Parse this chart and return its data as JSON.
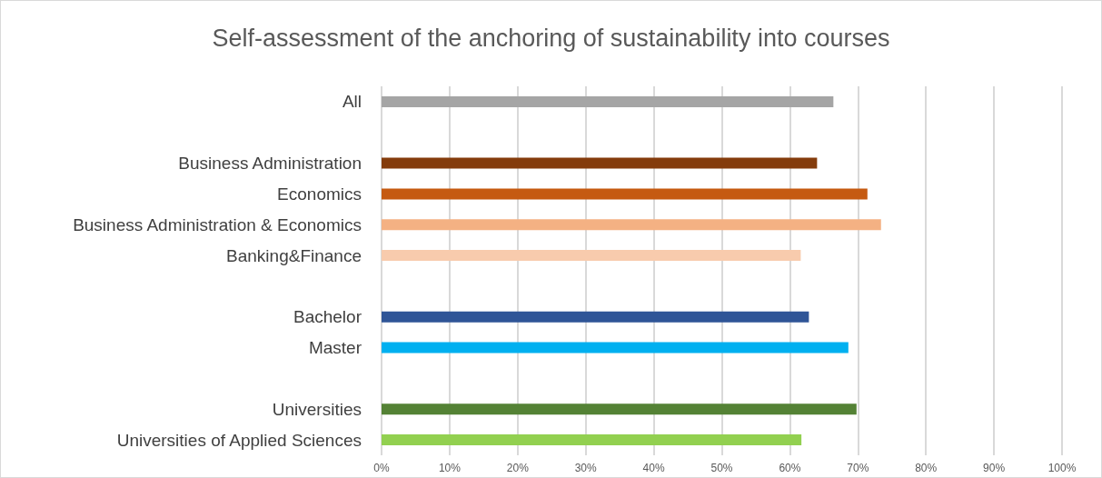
{
  "chart_data": {
    "type": "bar",
    "orientation": "horizontal",
    "title": "Self-assessment of the anchoring of sustainability into courses",
    "categories": [
      "All",
      null,
      "Business Administration",
      "Economics",
      "Business Administration & Economics",
      "Banking&Finance",
      null,
      "Bachelor",
      "Master",
      null,
      "Universities",
      "Universities of Applied Sciences"
    ],
    "values": [
      66.4,
      null,
      64.0,
      71.4,
      73.4,
      61.6,
      null,
      62.8,
      68.6,
      null,
      69.8,
      61.7
    ],
    "colors": [
      "#a5a5a5",
      null,
      "#843c0c",
      "#c55a11",
      "#f4b183",
      "#f8cbad",
      null,
      "#2f5597",
      "#00b0f0",
      null,
      "#548235",
      "#92d050"
    ],
    "xlim": [
      0,
      100
    ],
    "xticks": [
      {
        "value": 0,
        "label": "0%"
      },
      {
        "value": 10,
        "label": "10%"
      },
      {
        "value": 20,
        "label": "20%"
      },
      {
        "value": 30,
        "label": "30%"
      },
      {
        "value": 40,
        "label": "40%"
      },
      {
        "value": 50,
        "label": "50%"
      },
      {
        "value": 60,
        "label": "60%"
      },
      {
        "value": 70,
        "label": "70%"
      },
      {
        "value": 80,
        "label": "80%"
      },
      {
        "value": 90,
        "label": "90%"
      },
      {
        "value": 100,
        "label": "100%"
      }
    ],
    "grid": "x"
  }
}
